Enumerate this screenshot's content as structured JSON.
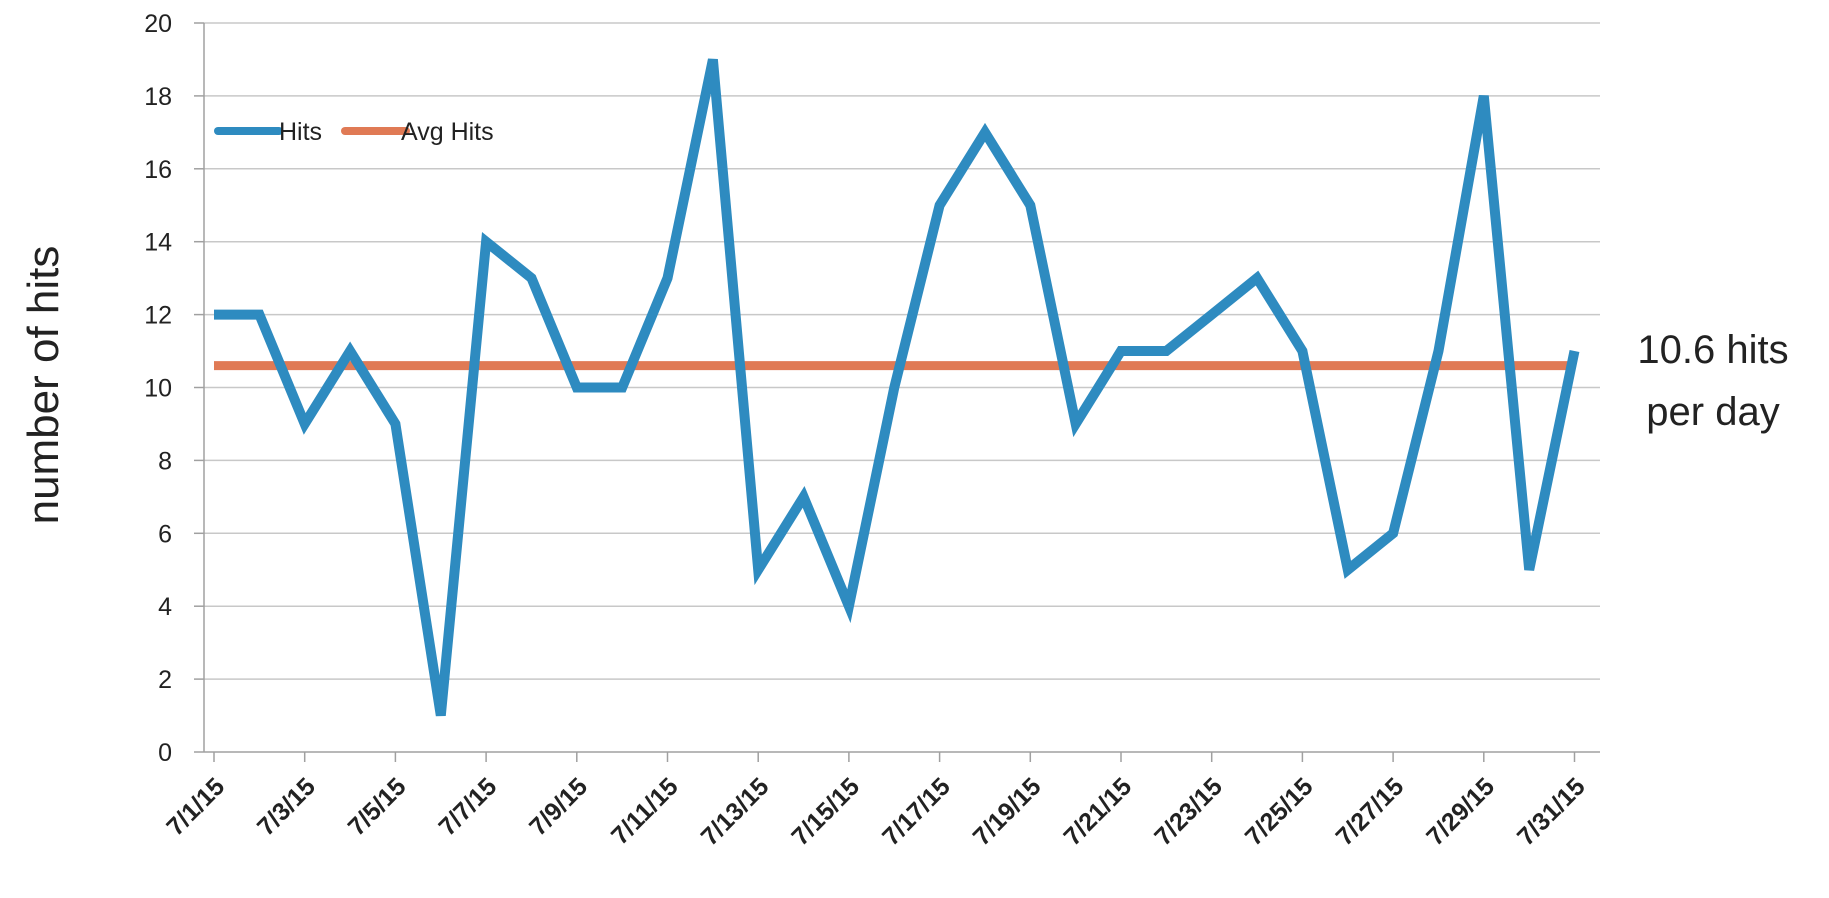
{
  "chart_data": {
    "type": "line",
    "title": "",
    "xlabel": "",
    "ylabel": "number of hits",
    "ylim": [
      0,
      20
    ],
    "y_ticks": [
      0,
      2,
      4,
      6,
      8,
      10,
      12,
      14,
      16,
      18,
      20
    ],
    "x": [
      "7/1/15",
      "7/2/15",
      "7/3/15",
      "7/4/15",
      "7/5/15",
      "7/6/15",
      "7/7/15",
      "7/8/15",
      "7/9/15",
      "7/10/15",
      "7/11/15",
      "7/12/15",
      "7/13/15",
      "7/14/15",
      "7/15/15",
      "7/16/15",
      "7/17/15",
      "7/18/15",
      "7/19/15",
      "7/20/15",
      "7/21/15",
      "7/22/15",
      "7/23/15",
      "7/24/15",
      "7/25/15",
      "7/26/15",
      "7/27/15",
      "7/28/15",
      "7/29/15",
      "7/30/15",
      "7/31/15"
    ],
    "x_tick_labels": [
      "7/1/15",
      "7/3/15",
      "7/5/15",
      "7/7/15",
      "7/9/15",
      "7/11/15",
      "7/13/15",
      "7/15/15",
      "7/17/15",
      "7/19/15",
      "7/21/15",
      "7/23/15",
      "7/25/15",
      "7/27/15",
      "7/29/15",
      "7/31/15"
    ],
    "series": [
      {
        "name": "Hits",
        "color": "#2e8bc0",
        "values": [
          12,
          12,
          9,
          11,
          9,
          1,
          14,
          13,
          10,
          10,
          13,
          19,
          5,
          7,
          4,
          10,
          15,
          17,
          15,
          9,
          11,
          11,
          12,
          13,
          11,
          5,
          6,
          11,
          18,
          5,
          11
        ]
      },
      {
        "name": "Avg Hits",
        "color": "#e07a55",
        "values": [
          10.6,
          10.6,
          10.6,
          10.6,
          10.6,
          10.6,
          10.6,
          10.6,
          10.6,
          10.6,
          10.6,
          10.6,
          10.6,
          10.6,
          10.6,
          10.6,
          10.6,
          10.6,
          10.6,
          10.6,
          10.6,
          10.6,
          10.6,
          10.6,
          10.6,
          10.6,
          10.6,
          10.6,
          10.6,
          10.6,
          10.6
        ]
      }
    ],
    "grid": true,
    "legend": "top-left",
    "annotation": {
      "line1": "10.6 hits",
      "line2": "per day"
    },
    "colors": {
      "grid": "#c8c8c8",
      "axis": "#a0a0a0",
      "text": "#222222"
    }
  }
}
